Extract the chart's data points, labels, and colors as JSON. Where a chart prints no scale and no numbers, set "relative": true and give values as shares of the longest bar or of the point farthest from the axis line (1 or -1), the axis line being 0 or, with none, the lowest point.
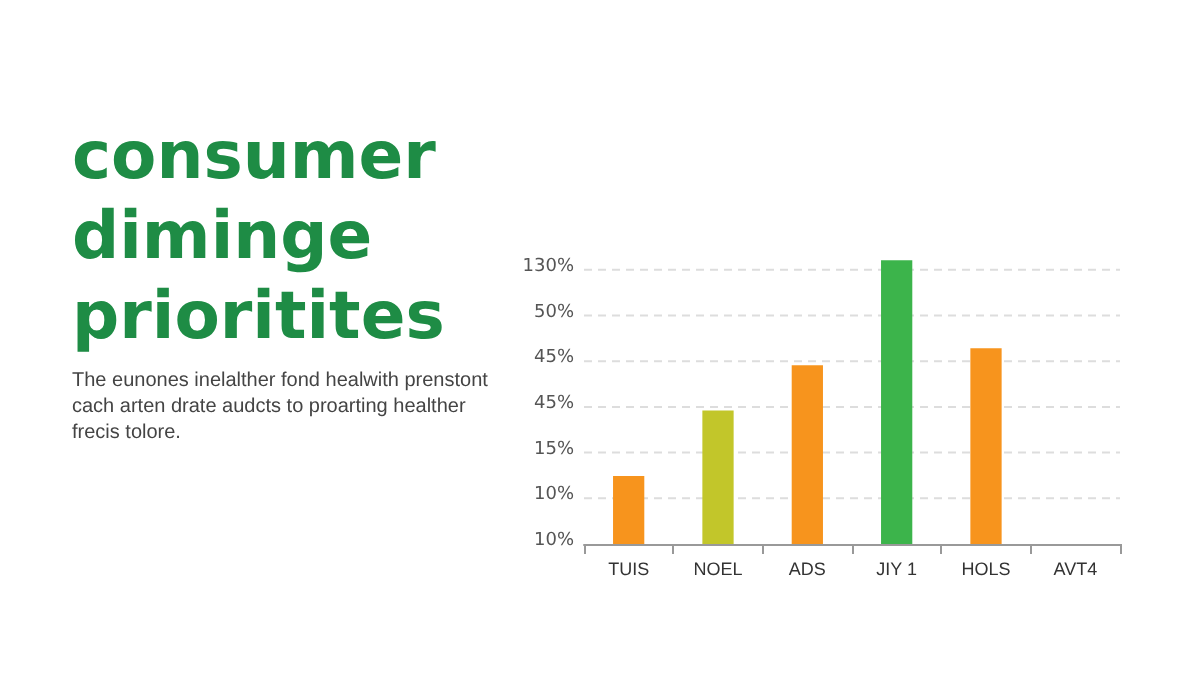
{
  "chart_data": {
    "type": "bar",
    "title": "consumer diminge prioritites",
    "subtitle": "The eunones inelalther fond healwith prenstont cach arten drate audcts to proarting healther frecis tolore.",
    "categories": [
      "TUIS",
      "NOEL",
      "ADS",
      "JIY 1",
      "HOLS",
      "AVT4"
    ],
    "values": [
      0.24,
      0.47,
      0.63,
      1,
      0.69,
      null
    ],
    "colors": [
      "#f7941d",
      "#c2c62a",
      "#f7941d",
      "#3cb44b",
      "#f7941d",
      "#f7941d"
    ],
    "relative": true,
    "annotations": [
      "10%",
      "10%",
      "15%",
      "45%",
      "45%",
      "50%",
      "130%"
    ],
    "grid": "y"
  }
}
